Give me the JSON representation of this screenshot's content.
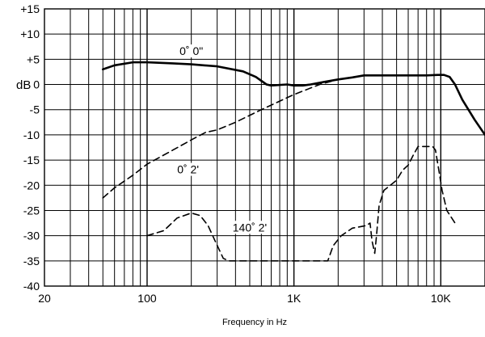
{
  "chart_data": {
    "type": "line",
    "title": "",
    "xlabel": "Frequency in Hz",
    "ylabel": "dB",
    "x_scale": "log",
    "xlim": [
      20,
      20000
    ],
    "ylim": [
      -40,
      15
    ],
    "grid": true,
    "x_ticks": [
      {
        "value": 20,
        "label": "20"
      },
      {
        "value": 100,
        "label": "100"
      },
      {
        "value": 1000,
        "label": "1K"
      },
      {
        "value": 10000,
        "label": "10K"
      }
    ],
    "y_ticks": [
      {
        "value": 15,
        "label": "+15"
      },
      {
        "value": 10,
        "label": "+10"
      },
      {
        "value": 5,
        "label": "+5"
      },
      {
        "value": 0,
        "label": "0"
      },
      {
        "value": -5,
        "label": "-5"
      },
      {
        "value": -10,
        "label": "-10"
      },
      {
        "value": -15,
        "label": "-15"
      },
      {
        "value": -20,
        "label": "-20"
      },
      {
        "value": -25,
        "label": "-25"
      },
      {
        "value": -30,
        "label": "-30"
      },
      {
        "value": -35,
        "label": "-35"
      },
      {
        "value": -40,
        "label": "-40"
      }
    ],
    "series": [
      {
        "name": "0˚ 0\"",
        "style": "solid",
        "label_at": [
          200,
          6.5
        ],
        "points": [
          [
            50,
            3
          ],
          [
            60,
            3.8
          ],
          [
            80,
            4.4
          ],
          [
            100,
            4.4
          ],
          [
            150,
            4.2
          ],
          [
            200,
            4
          ],
          [
            300,
            3.6
          ],
          [
            450,
            2.6
          ],
          [
            550,
            1.5
          ],
          [
            650,
            0
          ],
          [
            700,
            -0.2
          ],
          [
            900,
            0
          ],
          [
            1000,
            -0.2
          ],
          [
            1150,
            -0.2
          ],
          [
            1300,
            0
          ],
          [
            1600,
            0.5
          ],
          [
            2000,
            1
          ],
          [
            2500,
            1.4
          ],
          [
            3000,
            1.8
          ],
          [
            5000,
            1.8
          ],
          [
            8000,
            1.8
          ],
          [
            9500,
            1.9
          ],
          [
            10500,
            1.9
          ],
          [
            11500,
            1.5
          ],
          [
            12500,
            0
          ],
          [
            14000,
            -3
          ],
          [
            17000,
            -7
          ],
          [
            20000,
            -10
          ]
        ]
      },
      {
        "name": "0˚ 2'",
        "style": "dashed",
        "label_at": [
          190,
          -17
        ],
        "points": [
          [
            50,
            -22.5
          ],
          [
            60,
            -20.5
          ],
          [
            80,
            -18
          ],
          [
            100,
            -15.8
          ],
          [
            150,
            -13
          ],
          [
            200,
            -11
          ],
          [
            250,
            -9.5
          ],
          [
            300,
            -9
          ],
          [
            400,
            -7.5
          ],
          [
            600,
            -5
          ],
          [
            1000,
            -2
          ],
          [
            1500,
            0
          ],
          [
            2000,
            1
          ]
        ]
      },
      {
        "name": "140˚ 2'",
        "style": "dashed",
        "label_at": [
          500,
          -28.5
        ],
        "points": [
          [
            100,
            -30
          ],
          [
            130,
            -29
          ],
          [
            160,
            -26.5
          ],
          [
            200,
            -25.5
          ],
          [
            230,
            -26
          ],
          [
            260,
            -28
          ],
          [
            290,
            -31
          ],
          [
            330,
            -34.5
          ],
          [
            360,
            -35
          ],
          [
            500,
            -35
          ],
          [
            1000,
            -35
          ],
          [
            1700,
            -35
          ],
          [
            1850,
            -32
          ],
          [
            2100,
            -30
          ],
          [
            2500,
            -28.5
          ],
          [
            3100,
            -28
          ],
          [
            3300,
            -27.5
          ],
          [
            3400,
            -31
          ],
          [
            3550,
            -33.5
          ],
          [
            3650,
            -30
          ],
          [
            3800,
            -24
          ],
          [
            4100,
            -21
          ],
          [
            5000,
            -19
          ],
          [
            5500,
            -17
          ],
          [
            6000,
            -16
          ],
          [
            6500,
            -14
          ],
          [
            7000,
            -12.3
          ],
          [
            8000,
            -12.3
          ],
          [
            8800,
            -12.3
          ],
          [
            9200,
            -13
          ],
          [
            9700,
            -17
          ],
          [
            10200,
            -21
          ],
          [
            11000,
            -25
          ],
          [
            12500,
            -27.5
          ]
        ]
      }
    ]
  }
}
